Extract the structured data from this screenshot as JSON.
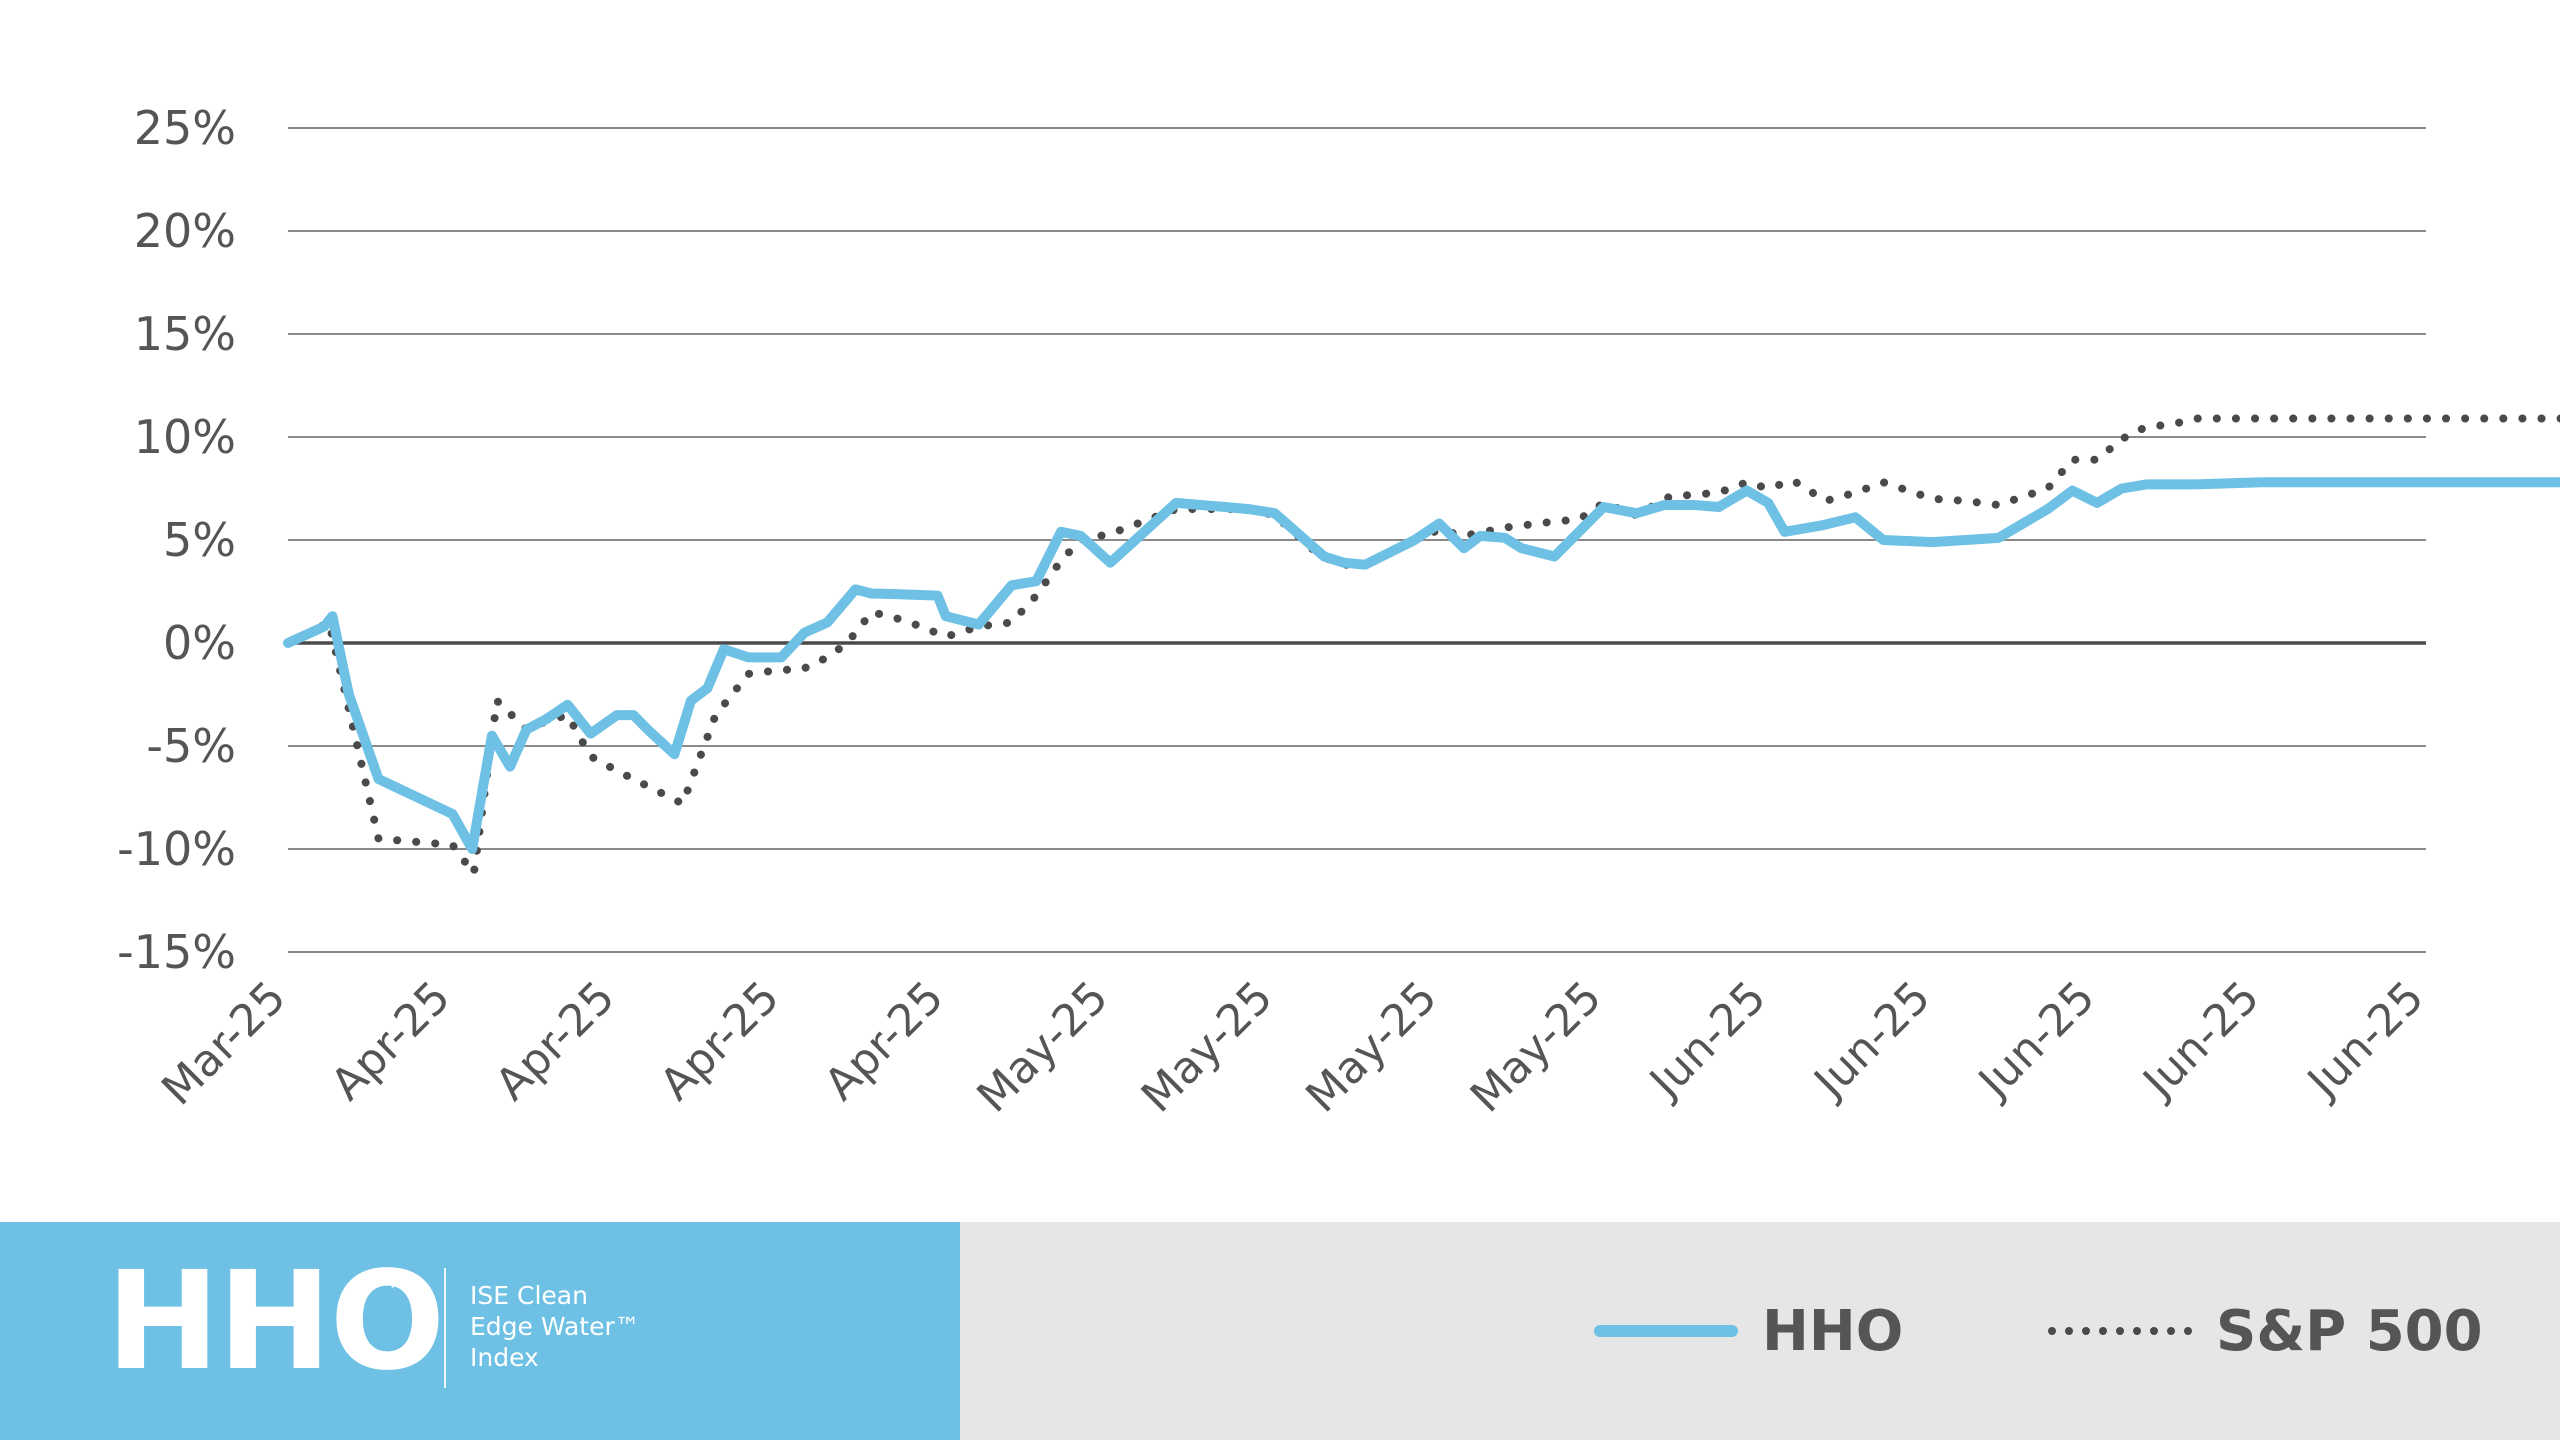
{
  "chart_data": {
    "type": "line",
    "title": "",
    "xlabel": "",
    "ylabel": "",
    "ylim": [
      -15,
      25
    ],
    "yticks": [
      25,
      20,
      15,
      10,
      5,
      0,
      -5,
      -10,
      -15
    ],
    "ytick_labels": [
      "25%",
      "20%",
      "15%",
      "10%",
      "5%",
      "0%",
      "-5%",
      "-10%",
      "-15%"
    ],
    "xtick_labels": [
      "Mar-25",
      "Apr-25",
      "Apr-25",
      "Apr-25",
      "Apr-25",
      "May-25",
      "May-25",
      "May-25",
      "May-25",
      "Jun-25",
      "Jun-25",
      "Jun-25",
      "Jun-25",
      "Jun-25"
    ],
    "grid": true,
    "legend_position": "bottom-right",
    "colors": {
      "hho": "#6ec1e4",
      "sp500": "#4a4a4a",
      "zero_line": "#4a4a4a"
    },
    "series": [
      {
        "name": "HHO",
        "style": "solid",
        "x": [
          0,
          0.22,
          0.27,
          0.37,
          0.55,
          1.0,
          1.12,
          1.24,
          1.35,
          1.45,
          1.57,
          1.7,
          1.84,
          2.0,
          2.1,
          2.2,
          2.35,
          2.45,
          2.55,
          2.65,
          2.8,
          2.95,
          3.0,
          3.14,
          3.28,
          3.45,
          3.55,
          3.6,
          3.95,
          4.0,
          4.2,
          4.4,
          4.55,
          4.7,
          4.82,
          5.0,
          5.4,
          5.55,
          5.7,
          5.84,
          6.0,
          6.3,
          6.42,
          6.55,
          6.85,
          7.0,
          7.15,
          7.25,
          7.4,
          7.5,
          7.7,
          8.0,
          8.2,
          8.37,
          8.55,
          8.7,
          8.87,
          9.0,
          9.1,
          9.32,
          9.53,
          9.7,
          10.0,
          10.4,
          10.7,
          10.85,
          11.0,
          11.15,
          11.3,
          11.45,
          11.6,
          12.0,
          12.1,
          12.35,
          12.55,
          12.85,
          13.0,
          13.15,
          13.3,
          13.45,
          13.6,
          14.0
        ],
        "y": [
          0,
          0.8,
          1.3,
          -2.5,
          -6.6,
          -8.3,
          -10.0,
          -4.5,
          -6.0,
          -4.2,
          -3.7,
          -3.0,
          -4.4,
          -3.5,
          -3.5,
          -4.3,
          -5.4,
          -2.8,
          -2.2,
          -0.3,
          -0.7,
          -0.7,
          -0.7,
          0.5,
          1.0,
          2.6,
          2.4,
          2.4,
          2.3,
          1.3,
          0.9,
          2.8,
          3.0,
          5.4,
          5.2,
          3.9,
          6.8,
          6.7,
          6.6,
          6.5,
          6.3,
          4.2,
          3.9,
          3.8,
          5.0,
          5.8,
          4.6,
          5.2,
          5.1,
          4.6,
          4.2,
          6.6,
          6.3,
          6.7,
          6.7,
          6.6,
          7.4,
          6.8,
          5.4,
          5.7,
          6.1,
          5.0,
          4.9,
          5.1,
          6.5,
          7.4,
          6.8,
          7.5,
          7.7,
          7.7,
          7.7,
          7.8,
          7.8,
          7.8,
          7.8,
          7.8,
          7.8,
          7.8,
          7.8,
          7.8,
          7.8,
          7.8
        ]
      },
      {
        "name": "S&P 500",
        "style": "dotted",
        "x": [
          0,
          0.25,
          0.55,
          1.0,
          1.13,
          1.27,
          1.45,
          1.57,
          1.7,
          1.84,
          2.0,
          2.2,
          2.4,
          2.6,
          2.8,
          3.0,
          3.12,
          3.28,
          3.4,
          3.55,
          3.7,
          3.85,
          4.0,
          4.2,
          4.4,
          4.55,
          4.7,
          4.82,
          5.0,
          5.4,
          5.55,
          5.7,
          5.84,
          6.0,
          6.28,
          6.42,
          6.55,
          6.85,
          7.0,
          7.15,
          7.4,
          7.7,
          7.85,
          8.0,
          8.2,
          8.4,
          8.55,
          8.7,
          8.87,
          9.0,
          9.15,
          9.35,
          9.53,
          9.7,
          10.0,
          10.2,
          10.4,
          10.55,
          10.7,
          10.85,
          11.0,
          11.15,
          11.3,
          11.45,
          11.6,
          12.0,
          12.2,
          12.4,
          12.6,
          12.8,
          13.0,
          13.2,
          13.4,
          13.6,
          14.0
        ],
        "y": [
          0,
          1.0,
          -9.5,
          -9.8,
          -11.2,
          -2.8,
          -4.2,
          -3.8,
          -3.5,
          -5.5,
          -6.2,
          -7.0,
          -7.8,
          -3.5,
          -1.5,
          -1.3,
          -1.3,
          -0.7,
          0.0,
          1.5,
          1.2,
          0.8,
          0.3,
          0.8,
          1.0,
          2.3,
          4.0,
          5.0,
          5.3,
          6.5,
          6.5,
          6.5,
          6.5,
          6.2,
          4.2,
          3.8,
          3.8,
          5.0,
          5.5,
          5.2,
          5.6,
          5.9,
          6.0,
          6.8,
          6.2,
          7.1,
          7.2,
          7.3,
          7.8,
          7.5,
          7.9,
          6.9,
          7.3,
          7.8,
          7.0,
          6.9,
          6.7,
          7.1,
          7.5,
          8.9,
          8.9,
          9.9,
          10.5,
          10.6,
          10.9,
          10.9,
          10.9,
          10.9,
          10.9,
          10.9,
          10.9,
          10.9,
          10.9,
          10.9,
          10.9
        ]
      }
    ]
  },
  "footer": {
    "brand_color": "#6ec1e4",
    "background": "#e6e6e6",
    "ticker": "HHO",
    "ticker_tm": "™",
    "index_name_lines": [
      "ISE Clean",
      "Edge Water™",
      "Index"
    ]
  },
  "legend": {
    "hho_label": "HHO",
    "sp500_label": "S&P 500"
  }
}
